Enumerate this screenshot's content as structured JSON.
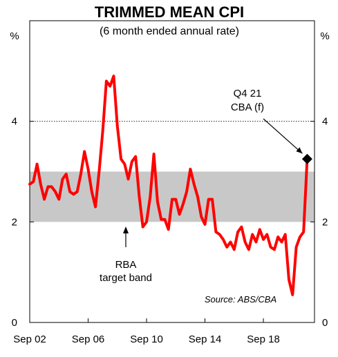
{
  "chart_data": {
    "type": "line",
    "title": "TRIMMED MEAN CPI",
    "subtitle": "(6 month ended annual rate)",
    "ylabel_left": "%",
    "ylabel_right": "%",
    "ylim": [
      0,
      6
    ],
    "yticks": [
      0,
      2,
      4
    ],
    "xlim": [
      "2002-09",
      "2022-03"
    ],
    "xticks": [
      "Sep 02",
      "Sep 06",
      "Sep 10",
      "Sep 14",
      "Sep 18"
    ],
    "xticks_dates": [
      "2002-09",
      "2006-09",
      "2010-09",
      "2014-09",
      "2018-09"
    ],
    "grid": false,
    "reference_line": {
      "y": 4,
      "style": "dotted"
    },
    "band": {
      "from": 2,
      "to": 3,
      "label": "RBA\ntarget band"
    },
    "series": [
      {
        "color": "#ff0000",
        "x": [
          "2002-09",
          "2002-12",
          "2003-03",
          "2003-06",
          "2003-09",
          "2003-12",
          "2004-03",
          "2004-06",
          "2004-09",
          "2004-12",
          "2005-03",
          "2005-06",
          "2005-09",
          "2005-12",
          "2006-03",
          "2006-06",
          "2006-09",
          "2006-12",
          "2007-03",
          "2007-06",
          "2007-09",
          "2007-12",
          "2008-03",
          "2008-06",
          "2008-09",
          "2008-12",
          "2009-03",
          "2009-06",
          "2009-09",
          "2009-12",
          "2010-03",
          "2010-06",
          "2010-09",
          "2010-12",
          "2011-03",
          "2011-06",
          "2011-09",
          "2011-12",
          "2012-03",
          "2012-06",
          "2012-09",
          "2012-12",
          "2013-03",
          "2013-06",
          "2013-09",
          "2013-12",
          "2014-03",
          "2014-06",
          "2014-09",
          "2014-12",
          "2015-03",
          "2015-06",
          "2015-09",
          "2015-12",
          "2016-03",
          "2016-06",
          "2016-09",
          "2016-12",
          "2017-03",
          "2017-06",
          "2017-09",
          "2017-12",
          "2018-03",
          "2018-06",
          "2018-09",
          "2018-12",
          "2019-03",
          "2019-06",
          "2019-09",
          "2019-12",
          "2020-03",
          "2020-06",
          "2020-09",
          "2020-12",
          "2021-03",
          "2021-06",
          "2021-09"
        ],
        "values": [
          2.75,
          2.8,
          3.15,
          2.75,
          2.45,
          2.7,
          2.7,
          2.6,
          2.45,
          2.85,
          2.95,
          2.6,
          2.55,
          2.6,
          2.95,
          3.4,
          3.05,
          2.6,
          2.3,
          3.0,
          3.8,
          4.8,
          4.7,
          4.9,
          3.9,
          3.25,
          3.15,
          2.85,
          3.2,
          3.3,
          2.5,
          1.9,
          2.0,
          2.5,
          3.35,
          2.4,
          2.05,
          2.05,
          1.85,
          2.45,
          2.45,
          2.15,
          2.35,
          2.6,
          3.05,
          2.75,
          2.5,
          2.1,
          1.95,
          2.45,
          2.45,
          1.8,
          1.75,
          1.65,
          1.5,
          1.6,
          1.45,
          1.8,
          1.9,
          1.6,
          1.45,
          1.75,
          1.6,
          1.85,
          1.65,
          1.75,
          1.5,
          1.45,
          1.7,
          1.6,
          1.75,
          0.85,
          0.55,
          1.5,
          1.7,
          1.8,
          3.25
        ]
      }
    ],
    "marker": {
      "x": "2021-09",
      "y": 3.25,
      "shape": "diamond",
      "label": "Q4 21\nCBA (f)"
    },
    "source": "Source: ABS/CBA"
  }
}
